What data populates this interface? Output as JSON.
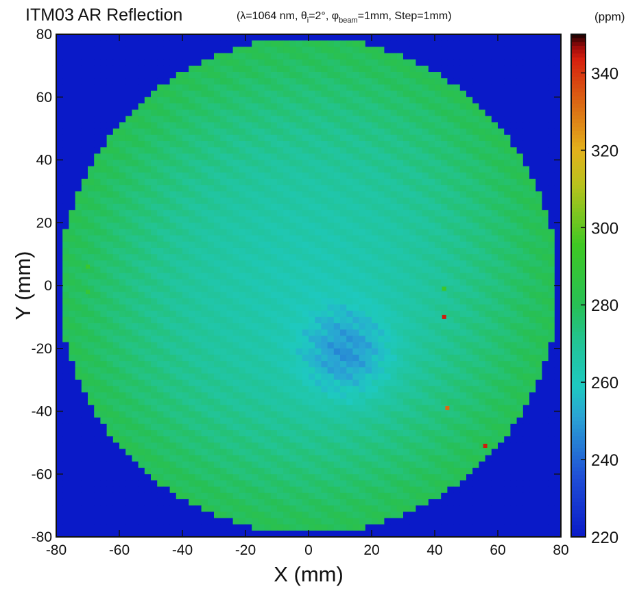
{
  "chart_data": {
    "type": "heatmap",
    "title": "ITM03 AR Reflection",
    "params": {
      "lambda": "λ=1064 nm, ",
      "theta_sym": "θ",
      "theta_sub": "i",
      "theta_val": "=2°, ",
      "phi_sym": "φ",
      "phi_sub": "beam",
      "phi_val": "=1mm, Step=1mm"
    },
    "xlabel": "X (mm)",
    "ylabel": "Y (mm)",
    "xlim": [
      -80,
      80
    ],
    "ylim": [
      -80,
      80
    ],
    "xticks": [
      -80,
      -60,
      -40,
      -20,
      0,
      20,
      40,
      60,
      80
    ],
    "yticks": [
      -80,
      -60,
      -40,
      -20,
      0,
      20,
      40,
      60,
      80
    ],
    "colorbar": {
      "units": "(ppm)",
      "range": [
        220,
        350
      ],
      "ticks": [
        220,
        240,
        260,
        280,
        300,
        320,
        340
      ]
    },
    "map": {
      "outside_value": 220,
      "radius_mm": 79,
      "edge_value": 281,
      "center_value": 263,
      "low_center": [
        12,
        -22
      ],
      "low_value": 247,
      "low_radius_mm": 14,
      "hot_spots": [
        {
          "x": 43,
          "y": -10,
          "value": 344
        },
        {
          "x": 56,
          "y": -51,
          "value": 344
        },
        {
          "x": 44,
          "y": -39,
          "value": 332
        },
        {
          "x": -70,
          "y": 6,
          "value": 292
        },
        {
          "x": -70,
          "y": -2,
          "value": 290
        },
        {
          "x": 43,
          "y": -1,
          "value": 294
        }
      ]
    },
    "colormap": [
      [
        0,
        "#0a1ac8"
      ],
      [
        0.12,
        "#1f4fd6"
      ],
      [
        0.24,
        "#2aa4d4"
      ],
      [
        0.3,
        "#1ec9c0"
      ],
      [
        0.38,
        "#22c49a"
      ],
      [
        0.46,
        "#27c056"
      ],
      [
        0.58,
        "#3ec823"
      ],
      [
        0.7,
        "#b8c21d"
      ],
      [
        0.77,
        "#e3b11c"
      ],
      [
        0.86,
        "#db6a14"
      ],
      [
        0.95,
        "#d6200e"
      ],
      [
        0.975,
        "#9c0a0a"
      ],
      [
        1,
        "#140000"
      ]
    ]
  }
}
